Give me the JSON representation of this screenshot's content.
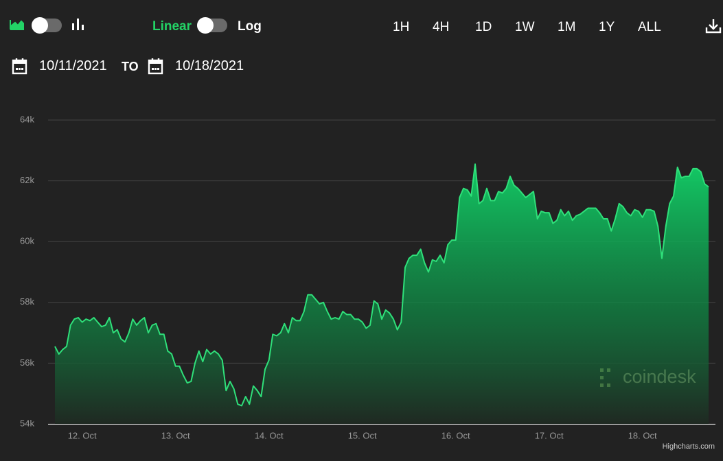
{
  "controls": {
    "linear": "Linear",
    "log": "Log",
    "ranges": [
      "1H",
      "4H",
      "1D",
      "1W",
      "1M",
      "1Y",
      "ALL"
    ],
    "date_from": "10/11/2021",
    "date_to_label": "TO",
    "date_to": "10/18/2021"
  },
  "chart_data": {
    "type": "area",
    "color": "#2fe07a",
    "grid": true,
    "watermark": "coindesk",
    "credits": "Highcharts.com",
    "ylim": [
      54000,
      64000
    ],
    "yticks": [
      {
        "value": 54000,
        "label": "54k"
      },
      {
        "value": 56000,
        "label": "56k"
      },
      {
        "value": 58000,
        "label": "58k"
      },
      {
        "value": 60000,
        "label": "60k"
      },
      {
        "value": 62000,
        "label": "62k"
      },
      {
        "value": 64000,
        "label": "64k"
      }
    ],
    "categories": [
      null,
      null,
      null,
      null,
      null,
      null,
      null,
      "12. Oct",
      null,
      null,
      null,
      null,
      null,
      null,
      null,
      null,
      null,
      null,
      null,
      null,
      null,
      null,
      null,
      null,
      null,
      null,
      null,
      null,
      null,
      null,
      null,
      "13. Oct",
      null,
      null,
      null,
      null,
      null,
      null,
      null,
      null,
      null,
      null,
      null,
      null,
      null,
      null,
      null,
      null,
      null,
      null,
      null,
      null,
      null,
      null,
      null,
      "14. Oct",
      null,
      null,
      null,
      null,
      null,
      null,
      null,
      null,
      null,
      null,
      null,
      null,
      null,
      null,
      null,
      null,
      null,
      null,
      null,
      null,
      null,
      null,
      null,
      "15. Oct",
      null,
      null,
      null,
      null,
      null,
      null,
      null,
      null,
      null,
      null,
      null,
      null,
      null,
      null,
      null,
      null,
      null,
      null,
      null,
      null,
      null,
      null,
      null,
      "16. Oct",
      null,
      null,
      null,
      null,
      null,
      null,
      null,
      null,
      null,
      null,
      null,
      null,
      null,
      null,
      null,
      null,
      null,
      null,
      null,
      null,
      null,
      null,
      null,
      "17. Oct",
      null,
      null,
      null,
      null,
      null,
      null,
      null,
      null,
      null,
      null,
      null,
      null,
      null,
      null,
      null,
      null,
      null,
      null,
      null,
      null,
      null,
      null,
      null,
      "18. Oct",
      null,
      null,
      null,
      null,
      null,
      null,
      null,
      null,
      null,
      null,
      null,
      null,
      null,
      null,
      null,
      null,
      null
    ],
    "values": [
      56550,
      56300,
      56450,
      56550,
      57250,
      57450,
      57500,
      57350,
      57450,
      57400,
      57500,
      57350,
      57200,
      57250,
      57500,
      57000,
      57100,
      56800,
      56700,
      57000,
      57450,
      57250,
      57400,
      57500,
      57000,
      57250,
      57300,
      56950,
      56950,
      56400,
      56300,
      55900,
      55900,
      55600,
      55350,
      55400,
      56000,
      56400,
      56050,
      56450,
      56300,
      56400,
      56300,
      56100,
      55100,
      55400,
      55150,
      54650,
      54600,
      54900,
      54650,
      55250,
      55100,
      54900,
      55800,
      56100,
      56950,
      56900,
      57000,
      57300,
      57000,
      57500,
      57400,
      57400,
      57700,
      58250,
      58250,
      58100,
      57950,
      58000,
      57700,
      57450,
      57500,
      57450,
      57700,
      57600,
      57600,
      57450,
      57450,
      57350,
      57150,
      57250,
      58050,
      57950,
      57450,
      57750,
      57650,
      57450,
      57100,
      57350,
      59150,
      59450,
      59550,
      59550,
      59750,
      59300,
      59000,
      59400,
      59350,
      59550,
      59300,
      59900,
      60050,
      60050,
      61450,
      61750,
      61700,
      61500,
      62550,
      61250,
      61350,
      61750,
      61350,
      61350,
      61650,
      61600,
      61750,
      62150,
      61850,
      61750,
      61600,
      61450,
      61550,
      61650,
      60750,
      61000,
      60950,
      60950,
      60600,
      60700,
      61050,
      60850,
      61000,
      60700,
      60850,
      60900,
      61000,
      61100,
      61100,
      61100,
      60950,
      60750,
      60750,
      60350,
      60750,
      61250,
      61150,
      60950,
      60850,
      61050,
      61000,
      60800,
      61050,
      61050,
      61000,
      60500,
      59450,
      60500,
      61250,
      61500,
      62450,
      62100,
      62150,
      62150,
      62400,
      62400,
      62300,
      61900,
      61800
    ]
  }
}
